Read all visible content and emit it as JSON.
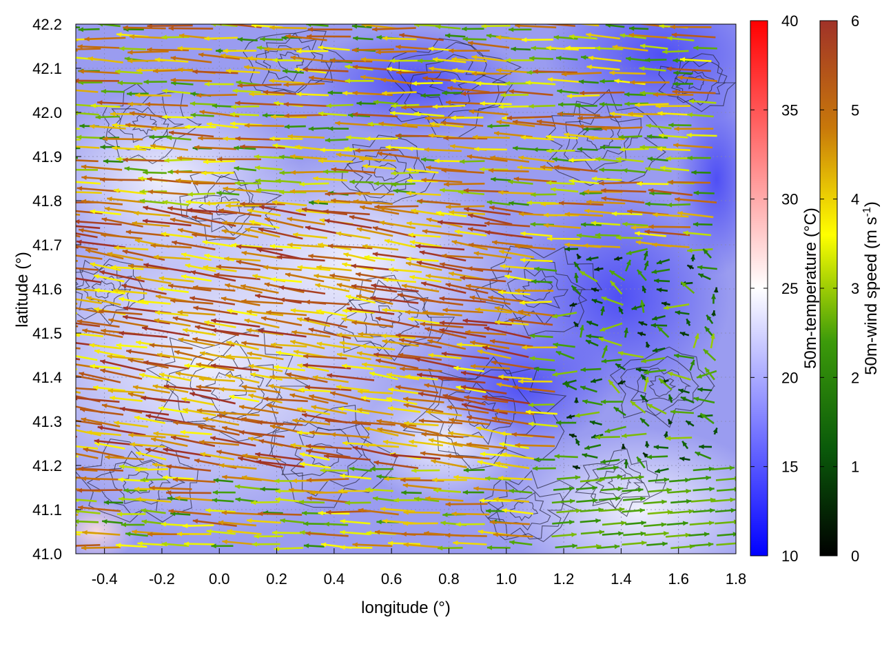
{
  "chart_data": {
    "type": "heatmap",
    "title": "",
    "xlabel": "longitude (°)",
    "ylabel": "latitude (°)",
    "xlim": [
      -0.5,
      1.8
    ],
    "ylim": [
      41.0,
      42.2
    ],
    "x_ticks": [
      "-0.4",
      "-0.2",
      "0.0",
      "0.2",
      "0.4",
      "0.6",
      "0.8",
      "1.0",
      "1.2",
      "1.4",
      "1.6",
      "1.8"
    ],
    "y_ticks": [
      "41.0",
      "41.1",
      "41.2",
      "41.3",
      "41.4",
      "41.5",
      "41.6",
      "41.7",
      "41.8",
      "41.9",
      "42.0",
      "42.1",
      "42.2"
    ],
    "grid": true,
    "overlays": [
      "50m wind vectors colored by speed",
      "terrain contour lines"
    ],
    "colorbars": [
      {
        "label": "50m-temperature (°C)",
        "range": [
          10,
          40
        ],
        "ticks": [
          "10",
          "15",
          "20",
          "25",
          "30",
          "35",
          "40"
        ],
        "colors": [
          "#0000ff",
          "#ffffff",
          "#ff0000"
        ]
      },
      {
        "label_main": "50m-wind speed (m s",
        "label_sup": "-1",
        "label_end": ")",
        "range": [
          0,
          6
        ],
        "ticks": [
          "0",
          "1",
          "2",
          "3",
          "4",
          "5",
          "6"
        ],
        "colors": [
          "#000000",
          "#0a5a0a",
          "#3c9a0a",
          "#ffff00",
          "#c8780a",
          "#a03228"
        ]
      }
    ]
  }
}
